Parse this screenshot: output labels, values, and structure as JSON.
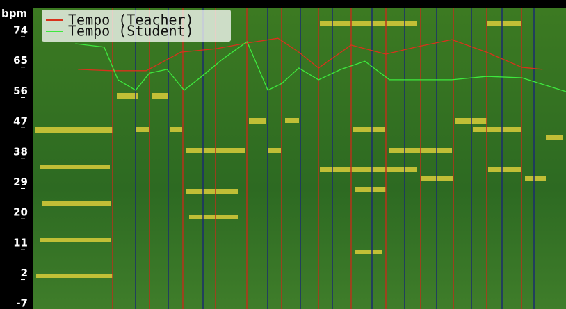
{
  "chart_data": {
    "type": "line",
    "ylabel": "bpm",
    "ylim": [
      -8.6,
      80.6
    ],
    "yticks": [
      74,
      65,
      56,
      47,
      38,
      29,
      20,
      11,
      2,
      -7
    ],
    "xlim": [
      0,
      100
    ],
    "legend": "upper left",
    "series": [
      {
        "name": "Tempo (Teacher)",
        "color": "#d8321c",
        "x": [
          8.5,
          14.7,
          21.3,
          27.8,
          34.3,
          40.2,
          46.0,
          49.9,
          53.6,
          59.7,
          66.2,
          72.1,
          78.6,
          85.1,
          91.7,
          95.6
        ],
        "values": [
          62.5,
          62.1,
          62.1,
          67.6,
          68.6,
          70.3,
          71.7,
          67.6,
          62.9,
          69.7,
          67.0,
          69.2,
          71.3,
          67.6,
          63.1,
          62.5
        ]
      },
      {
        "name": "Tempo (Student)",
        "color": "#3ee83e",
        "x": [
          8.0,
          13.4,
          16.0,
          19.3,
          21.9,
          25.2,
          28.4,
          31.7,
          35.6,
          40.2,
          44.1,
          46.7,
          49.9,
          53.6,
          57.8,
          62.3,
          66.9,
          72.1,
          78.6,
          85.1,
          91.7,
          100
        ],
        "values": [
          70.1,
          69.1,
          59.4,
          56.3,
          61.4,
          62.5,
          56.3,
          60.4,
          65.5,
          70.7,
          56.3,
          58.3,
          62.9,
          59.4,
          62.5,
          64.9,
          59.4,
          59.4,
          59.4,
          60.4,
          60.0,
          55.9
        ]
      }
    ]
  }
}
